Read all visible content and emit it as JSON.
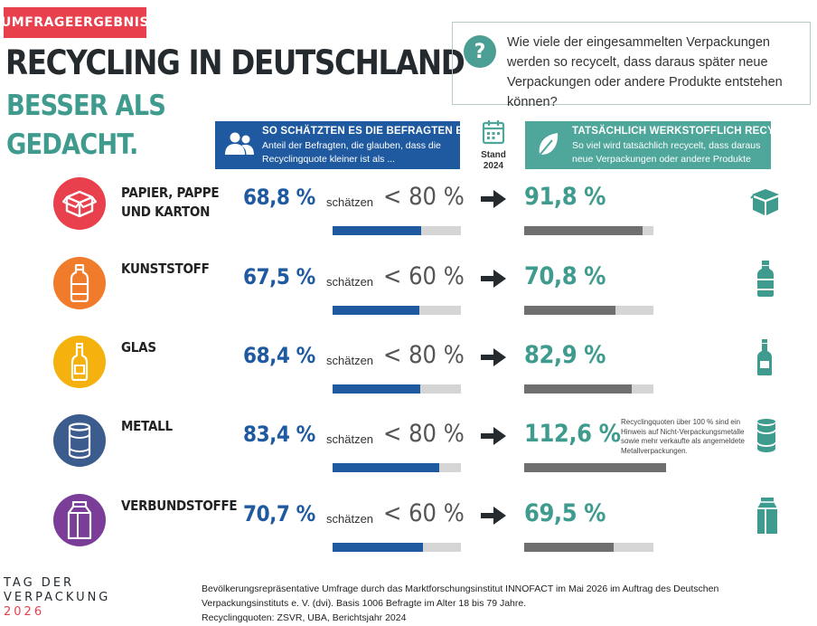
{
  "badge": "UMFRAGEERGEBNIS",
  "title": "RECYCLING IN DEUTSCHLAND",
  "subtitle_line1": "BESSER ALS",
  "subtitle_line2": "GEDACHT.",
  "question": "Wie viele der eingesammelten Verpackungen werden so recycelt, dass daraus später neue Verpackungen oder andere Produkte entstehen können?",
  "header_left": {
    "title": "SO SCHÄTZTEN ES DIE BEFRAGTEN EIN",
    "subtitle": "Anteil der Befragten, die glauben, dass die Recyclingquote kleiner ist als ..."
  },
  "header_right": {
    "title": "TATSÄCHLICH WERKSTOFFLICH RECYCELT",
    "subtitle": "So viel wird tatsächlich recycelt, dass daraus neue Verpackungen oder andere Produkte entstehen."
  },
  "stand": {
    "line1": "Stand",
    "line2": "2024"
  },
  "note": "Recyclingquoten über 100 % sind ein Hinweis auf Nicht-Verpackungsmetalle sowie mehr verkaufte als angemeldete Metallverpackungen.",
  "footer": {
    "brand_line1": "TAG DER",
    "brand_line2": "VERPACKUNG",
    "brand_year": "2026",
    "survey": "Bevölkerungsrepräsentative Umfrage durch das Marktforschungsinstitut INNOFACT im Mai 2026 im Auftrag des Deutschen Verpackungsinstituts e. V. (dvi). Basis 1006 Befragte im Alter 18 bis 79 Jahre.",
    "sources": "Recyclingquoten: ZSVR, UBA, Berichtsjahr 2024"
  },
  "colors": {
    "estimate": "#1f5aa0",
    "actual": "#3e9b8d",
    "actual_bar": "#6f6f6f",
    "track": "#d5d5d5",
    "accent_red": "#e8404c"
  },
  "chart_data": {
    "type": "bar",
    "categories": [
      "PAPIER, PAPPE UND KARTON",
      "KUNSTSTOFF",
      "GLAS",
      "METALL",
      "VERBUNDSTOFFE"
    ],
    "rows": [
      {
        "category": "PAPIER, PAPPE UND KARTON",
        "estimate": 68.8,
        "estimate_label": "68,8 %",
        "verb": "schätzen",
        "threshold_label": "< 80 %",
        "actual": 91.8,
        "actual_label": "91,8 %",
        "icon": "box-icon",
        "color": "#e8404c"
      },
      {
        "category": "KUNSTSTOFF",
        "estimate": 67.5,
        "estimate_label": "67,5 %",
        "verb": "schätzen",
        "threshold_label": "< 60 %",
        "actual": 70.8,
        "actual_label": "70,8 %",
        "icon": "plastic-bottle-icon",
        "color": "#f07c2b"
      },
      {
        "category": "GLAS",
        "estimate": 68.4,
        "estimate_label": "68,4 %",
        "verb": "schätzen",
        "threshold_label": "< 80 %",
        "actual": 82.9,
        "actual_label": "82,9 %",
        "icon": "glass-bottle-icon",
        "color": "#f5b20e"
      },
      {
        "category": "METALL",
        "estimate": 83.4,
        "estimate_label": "83,4 %",
        "verb": "schätzen",
        "threshold_label": "< 80 %",
        "actual": 112.6,
        "actual_label": "112,6 %",
        "icon": "can-icon",
        "color": "#3b5c8c"
      },
      {
        "category": "VERBUNDSTOFFE",
        "estimate": 70.7,
        "estimate_label": "70,7 %",
        "verb": "schätzen",
        "threshold_label": "< 60 %",
        "actual": 69.5,
        "actual_label": "69,5 %",
        "icon": "carton-icon",
        "color": "#7a3e98"
      }
    ],
    "scale_max": 100
  }
}
